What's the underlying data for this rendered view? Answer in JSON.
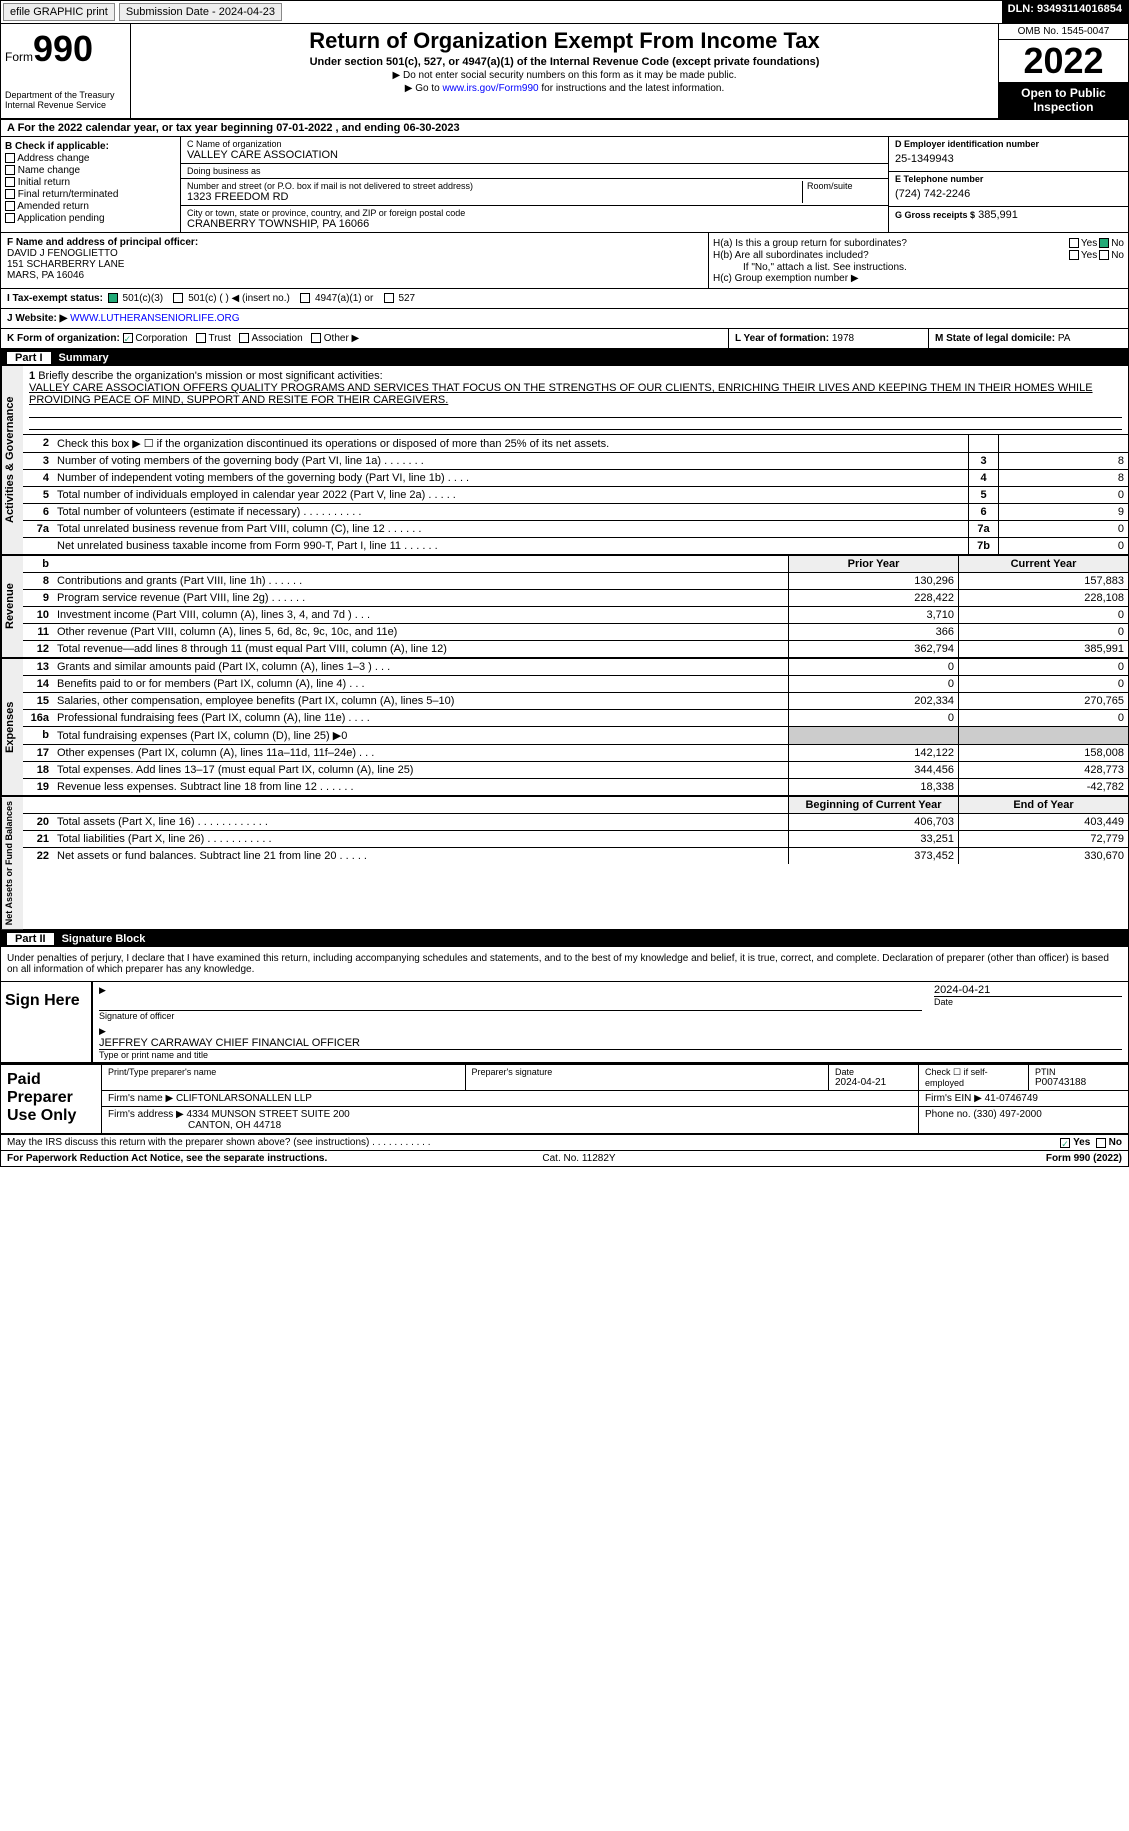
{
  "topbar": {
    "efile": "efile GRAPHIC print",
    "submission": "Submission Date - 2024-04-23",
    "dln": "DLN: 93493114016854"
  },
  "header": {
    "form_word": "Form",
    "form_num": "990",
    "dept": "Department of the Treasury\nInternal Revenue Service",
    "title": "Return of Organization Exempt From Income Tax",
    "sub": "Under section 501(c), 527, or 4947(a)(1) of the Internal Revenue Code (except private foundations)",
    "note1": "▶ Do not enter social security numbers on this form as it may be made public.",
    "note2_pre": "▶ Go to ",
    "note2_link": "www.irs.gov/Form990",
    "note2_post": " for instructions and the latest information.",
    "omb": "OMB No. 1545-0047",
    "year": "2022",
    "inspect": "Open to Public Inspection"
  },
  "row_a": "A For the 2022 calendar year, or tax year beginning 07-01-2022   , and ending 06-30-2023",
  "col_b": {
    "hdr": "B Check if applicable:",
    "items": [
      "Address change",
      "Name change",
      "Initial return",
      "Final return/terminated",
      "Amended return",
      "Application pending"
    ]
  },
  "col_c": {
    "name_lbl": "C Name of organization",
    "name": "VALLEY CARE ASSOCIATION",
    "dba_lbl": "Doing business as",
    "dba": "",
    "street_lbl": "Number and street (or P.O. box if mail is not delivered to street address)",
    "street": "1323 FREEDOM RD",
    "room_lbl": "Room/suite",
    "city_lbl": "City or town, state or province, country, and ZIP or foreign postal code",
    "city": "CRANBERRY TOWNSHIP, PA  16066"
  },
  "col_d": {
    "ein_lbl": "D Employer identification number",
    "ein": "25-1349943",
    "phone_lbl": "E Telephone number",
    "phone": "(724) 742-2246",
    "gross_lbl": "G Gross receipts $",
    "gross": "385,991"
  },
  "col_f": {
    "lbl": "F Name and address of principal officer:",
    "name": "DAVID J FENOGLIETTO",
    "addr1": "151 SCHARBERRY LANE",
    "addr2": "MARS, PA  16046"
  },
  "col_h": {
    "ha": "H(a)  Is this a group return for subordinates?",
    "hb": "H(b)  Are all subordinates included?",
    "hb_note": "If \"No,\" attach a list. See instructions.",
    "hc": "H(c)  Group exemption number ▶",
    "yes": "Yes",
    "no": "No"
  },
  "sec_i": {
    "lbl": "I   Tax-exempt status:",
    "opt1": "501(c)(3)",
    "opt2": "501(c) (  ) ◀ (insert no.)",
    "opt3": "4947(a)(1) or",
    "opt4": "527"
  },
  "sec_j": {
    "lbl": "J   Website: ▶",
    "val": "WWW.LUTHERANSENIORLIFE.ORG"
  },
  "sec_k": {
    "lbl": "K Form of organization:",
    "opts": [
      "Corporation",
      "Trust",
      "Association",
      "Other ▶"
    ]
  },
  "sec_l": {
    "lbl": "L Year of formation:",
    "val": "1978"
  },
  "sec_m": {
    "lbl": "M State of legal domicile:",
    "val": "PA"
  },
  "part1": {
    "num": "Part I",
    "title": "Summary"
  },
  "mission": {
    "num": "1",
    "lbl": "Briefly describe the organization's mission or most significant activities:",
    "txt": "VALLEY CARE ASSOCIATION OFFERS QUALITY PROGRAMS AND SERVICES THAT FOCUS ON THE STRENGTHS OF OUR CLIENTS, ENRICHING THEIR LIVES AND KEEPING THEM IN THEIR HOMES WHILE PROVIDING PEACE OF MIND, SUPPORT AND RESITE FOR THEIR CAREGIVERS."
  },
  "gov_lines": [
    {
      "n": "2",
      "d": "Check this box ▶ ☐ if the organization discontinued its operations or disposed of more than 25% of its net assets.",
      "box": "",
      "v": ""
    },
    {
      "n": "3",
      "d": "Number of voting members of the governing body (Part VI, line 1a)  .    .    .    .    .    .    .",
      "box": "3",
      "v": "8"
    },
    {
      "n": "4",
      "d": "Number of independent voting members of the governing body (Part VI, line 1b)  .    .    .    .",
      "box": "4",
      "v": "8"
    },
    {
      "n": "5",
      "d": "Total number of individuals employed in calendar year 2022 (Part V, line 2a)  .    .    .    .    .",
      "box": "5",
      "v": "0"
    },
    {
      "n": "6",
      "d": "Total number of volunteers (estimate if necessary)    .    .    .    .    .    .    .    .    .    .",
      "box": "6",
      "v": "9"
    },
    {
      "n": "7a",
      "d": "Total unrelated business revenue from Part VIII, column (C), line 12   .    .    .    .    .    .",
      "box": "7a",
      "v": "0"
    },
    {
      "n": "",
      "d": "Net unrelated business taxable income from Form 990-T, Part I, line 11  .    .    .    .    .    .",
      "box": "7b",
      "v": "0"
    }
  ],
  "yearhdr": {
    "num": "b",
    "prior": "Prior Year",
    "curr": "Current Year"
  },
  "rev_lines": [
    {
      "n": "8",
      "d": "Contributions and grants (Part VIII, line 1h)    .    .    .    .    .    .",
      "p": "130,296",
      "c": "157,883"
    },
    {
      "n": "9",
      "d": "Program service revenue (Part VIII, line 2g)    .    .    .    .    .    .",
      "p": "228,422",
      "c": "228,108"
    },
    {
      "n": "10",
      "d": "Investment income (Part VIII, column (A), lines 3, 4, and 7d )   .    .    .",
      "p": "3,710",
      "c": "0"
    },
    {
      "n": "11",
      "d": "Other revenue (Part VIII, column (A), lines 5, 6d, 8c, 9c, 10c, and 11e)",
      "p": "366",
      "c": "0"
    },
    {
      "n": "12",
      "d": "Total revenue—add lines 8 through 11 (must equal Part VIII, column (A), line 12)",
      "p": "362,794",
      "c": "385,991"
    }
  ],
  "exp_lines": [
    {
      "n": "13",
      "d": "Grants and similar amounts paid (Part IX, column (A), lines 1–3 )  .    .    .",
      "p": "0",
      "c": "0"
    },
    {
      "n": "14",
      "d": "Benefits paid to or for members (Part IX, column (A), line 4)   .    .    .",
      "p": "0",
      "c": "0"
    },
    {
      "n": "15",
      "d": "Salaries, other compensation, employee benefits (Part IX, column (A), lines 5–10)",
      "p": "202,334",
      "c": "270,765"
    },
    {
      "n": "16a",
      "d": "Professional fundraising fees (Part IX, column (A), line 11e)   .    .    .    .",
      "p": "0",
      "c": "0"
    },
    {
      "n": "b",
      "d": "Total fundraising expenses (Part IX, column (D), line 25) ▶0",
      "p": "",
      "c": "",
      "shade": true
    },
    {
      "n": "17",
      "d": "Other expenses (Part IX, column (A), lines 11a–11d, 11f–24e)   .    .    .",
      "p": "142,122",
      "c": "158,008"
    },
    {
      "n": "18",
      "d": "Total expenses. Add lines 13–17 (must equal Part IX, column (A), line 25)",
      "p": "344,456",
      "c": "428,773"
    },
    {
      "n": "19",
      "d": "Revenue less expenses. Subtract line 18 from line 12  .    .    .    .    .    .",
      "p": "18,338",
      "c": "-42,782"
    }
  ],
  "net_hdr": {
    "prior": "Beginning of Current Year",
    "curr": "End of Year"
  },
  "net_lines": [
    {
      "n": "20",
      "d": "Total assets (Part X, line 16)  .    .    .    .    .    .    .    .    .    .    .    .",
      "p": "406,703",
      "c": "403,449"
    },
    {
      "n": "21",
      "d": "Total liabilities (Part X, line 26)  .    .    .    .    .    .    .    .    .    .    .",
      "p": "33,251",
      "c": "72,779"
    },
    {
      "n": "22",
      "d": "Net assets or fund balances. Subtract line 21 from line 20  .    .    .    .    .",
      "p": "373,452",
      "c": "330,670"
    }
  ],
  "part2": {
    "num": "Part II",
    "title": "Signature Block"
  },
  "sig": {
    "decl": "Under penalties of perjury, I declare that I have examined this return, including accompanying schedules and statements, and to the best of my knowledge and belief, it is true, correct, and complete. Declaration of preparer (other than officer) is based on all information of which preparer has any knowledge.",
    "sign_here": "Sign Here",
    "sig_officer": "Signature of officer",
    "date": "2024-04-21",
    "name": "JEFFREY CARRAWAY  CHIEF FINANCIAL OFFICER",
    "name_lbl": "Type or print name and title"
  },
  "paid": {
    "lbl": "Paid Preparer Use Only",
    "prep_name_lbl": "Print/Type preparer's name",
    "prep_sig_lbl": "Preparer's signature",
    "date_lbl": "Date",
    "date": "2024-04-21",
    "check_lbl": "Check ☐ if self-employed",
    "ptin_lbl": "PTIN",
    "ptin": "P00743188",
    "firm_name_lbl": "Firm's name    ▶",
    "firm_name": "CLIFTONLARSONALLEN LLP",
    "firm_ein_lbl": "Firm's EIN ▶",
    "firm_ein": "41-0746749",
    "firm_addr_lbl": "Firm's address ▶",
    "firm_addr1": "4334 MUNSON STREET SUITE 200",
    "firm_addr2": "CANTON, OH  44718",
    "phone_lbl": "Phone no.",
    "phone": "(330) 497-2000"
  },
  "foot": {
    "discuss": "May the IRS discuss this return with the preparer shown above? (see instructions)   .    .    .    .    .    .    .    .    .    .    .",
    "yes": "Yes",
    "no": "No",
    "pra": "For Paperwork Reduction Act Notice, see the separate instructions.",
    "cat": "Cat. No. 11282Y",
    "form": "Form 990 (2022)"
  },
  "vlabels": {
    "gov": "Activities & Governance",
    "rev": "Revenue",
    "exp": "Expenses",
    "net": "Net Assets or Fund Balances"
  }
}
